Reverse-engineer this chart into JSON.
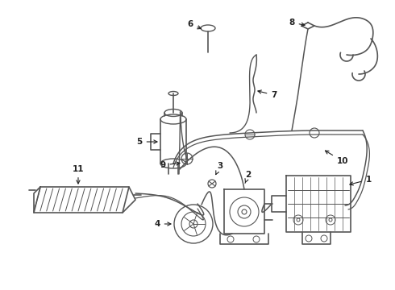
{
  "bg_color": "#ffffff",
  "line_color": "#555555",
  "lw": 1.2,
  "fig_w": 4.9,
  "fig_h": 3.6,
  "dpi": 100
}
